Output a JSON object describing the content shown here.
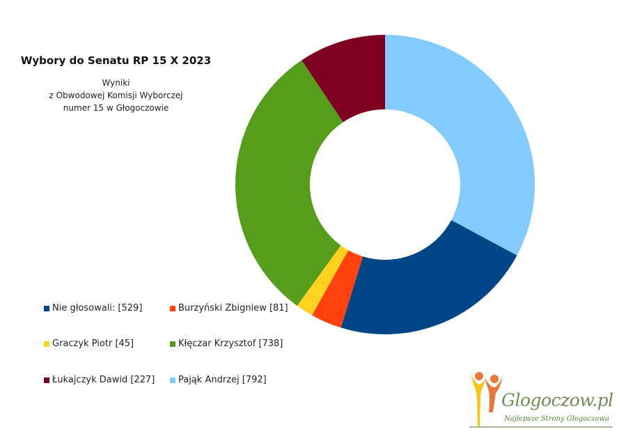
{
  "chart_data": {
    "type": "donut",
    "title": "Wybory do Senatu RP 15 X 2023",
    "subtitle": [
      "Wyniki",
      "z Obwodowej Komisji Wyborczej",
      "numer 15 w Głogoczowie"
    ],
    "slices": [
      {
        "label": "Nie głosowali:",
        "value": 529,
        "color": "#004586"
      },
      {
        "label": "Burzyński Zbigniew",
        "value": 81,
        "color": "#ff420e"
      },
      {
        "label": "Graczyk Piotr",
        "value": 45,
        "color": "#ffd320"
      },
      {
        "label": "Kłęczar Krzysztof",
        "value": 738,
        "color": "#579d1c"
      },
      {
        "label": "Łukajczyk Dawid",
        "value": 227,
        "color": "#7e0021"
      },
      {
        "label": "Pająk Andrzej",
        "value": 792,
        "color": "#83caff"
      }
    ],
    "legend_placement": "bottom-left"
  },
  "logo": {
    "text": "Glogoczow.pl",
    "tagline": "Najlepsze Strony Głogoczowa",
    "colors": [
      "#f5c518",
      "#e8773a",
      "#6e8f52"
    ]
  }
}
